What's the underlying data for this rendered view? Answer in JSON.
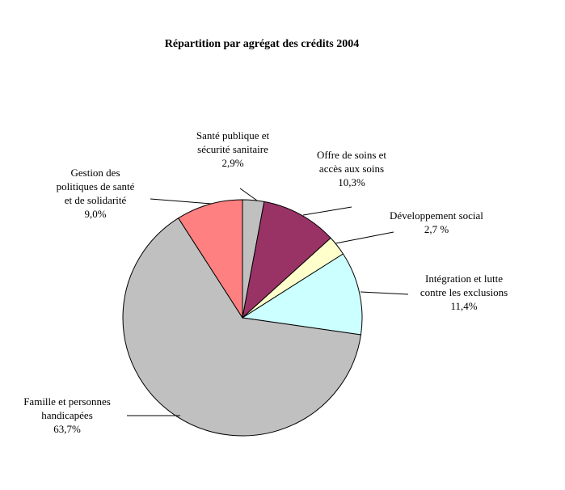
{
  "chart_data": {
    "type": "pie",
    "title": "Répartition par agrégat des crédits 2004",
    "slices": [
      {
        "name_lines": [
          "Santé publique et",
          "sécurité sanitaire"
        ],
        "value_label": "2,9%",
        "value": 2.9,
        "color": "#c0c0c0"
      },
      {
        "name_lines": [
          "Offre de soins et",
          "accès aux soins"
        ],
        "value_label": "10,3%",
        "value": 10.3,
        "color": "#993366"
      },
      {
        "name_lines": [
          "Développement social"
        ],
        "value_label": "2,7 %",
        "value": 2.7,
        "color": "#ffffcc"
      },
      {
        "name_lines": [
          "Intégration et lutte",
          "contre les exclusions"
        ],
        "value_label": "11,4%",
        "value": 11.4,
        "color": "#ccffff"
      },
      {
        "name_lines": [
          "Famille et personnes",
          "handicapées"
        ],
        "value_label": "63,7%",
        "value": 63.7,
        "color": "#c0c0c0"
      },
      {
        "name_lines": [
          "Gestion des",
          "politiques de santé",
          "et de solidarité"
        ],
        "value_label": "9,0%",
        "value": 9.0,
        "color": "#ff8080"
      }
    ]
  }
}
